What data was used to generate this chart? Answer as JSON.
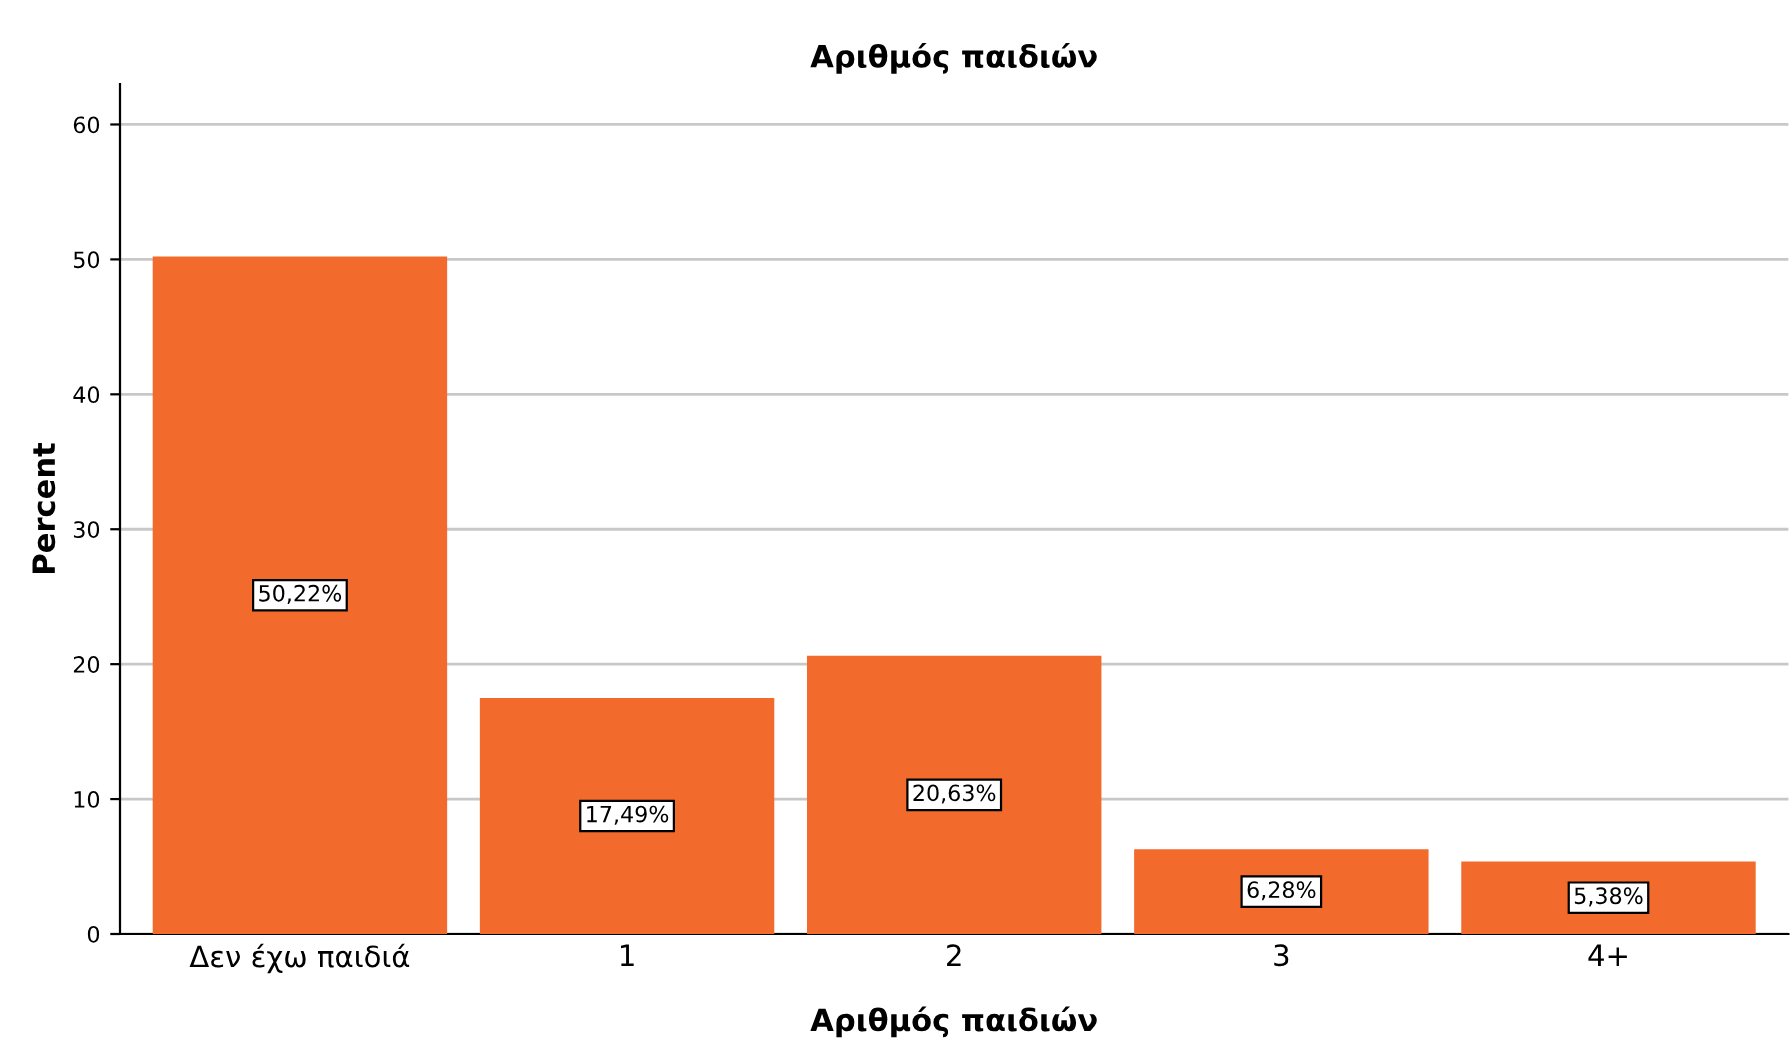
{
  "chart_data": {
    "type": "bar",
    "title": "Αριθμός παιδιών",
    "xlabel": "Αριθμός παιδιών",
    "ylabel": "Percent",
    "categories": [
      "Δεν έχω παιδιά",
      "1",
      "2",
      "3",
      "4+"
    ],
    "values": [
      50.22,
      17.49,
      20.63,
      6.28,
      5.38
    ],
    "value_labels": [
      "50,22%",
      "17,49%",
      "20,63%",
      "6,28%",
      "5,38%"
    ],
    "color": "#f26a2c",
    "ylim": [
      0,
      63
    ],
    "yticks": [
      0,
      10,
      20,
      30,
      40,
      50,
      60
    ],
    "grid": "y",
    "legend": false
  }
}
